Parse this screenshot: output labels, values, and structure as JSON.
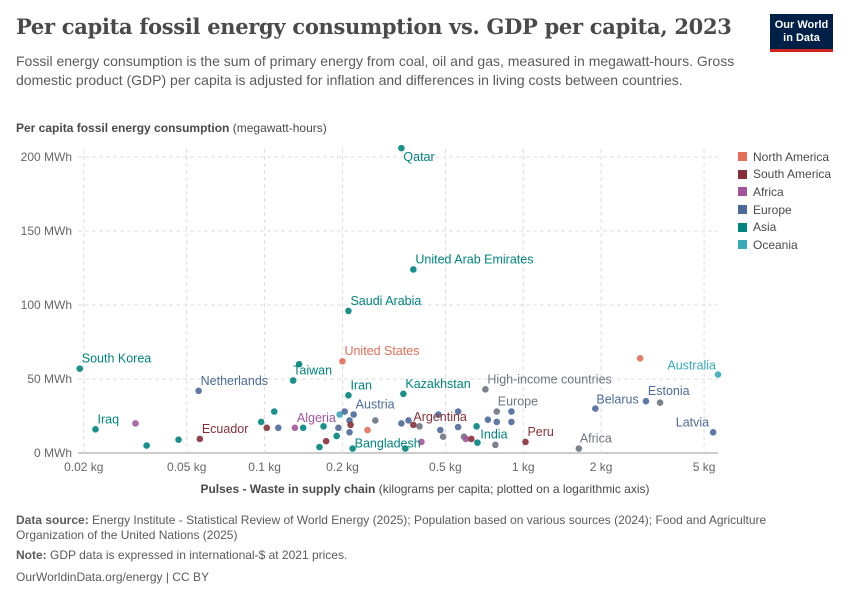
{
  "header": {
    "title": "Per capita fossil energy consumption vs. GDP per capita, 2023",
    "subtitle": "Fossil energy consumption is the sum of primary energy from coal, oil and gas, measured in megawatt-hours. Gross domestic product (GDP) per capita is adjusted for inflation and differences in living costs between countries.",
    "logo": "Our World in Data"
  },
  "chart_data": {
    "type": "scatter",
    "ylabel_bold": "Per capita fossil energy consumption",
    "ylabel_rest": "(megawatt-hours)",
    "xlabel_bold": "Pulses - Waste in supply chain",
    "xlabel_rest": "(kilograms per capita; plotted on a logarithmic axis)",
    "x_scale": "log",
    "xlim": [
      0.019,
      5.66
    ],
    "ylim": [
      0,
      210
    ],
    "grid": true,
    "legend_placement": "right",
    "x_ticks": [
      {
        "v": 0.02,
        "label": "0.02 kg"
      },
      {
        "v": 0.05,
        "label": "0.05 kg"
      },
      {
        "v": 0.1,
        "label": "0.1 kg"
      },
      {
        "v": 0.2,
        "label": "0.2 kg"
      },
      {
        "v": 0.5,
        "label": "0.5 kg"
      },
      {
        "v": 1,
        "label": "1 kg"
      },
      {
        "v": 2,
        "label": "2 kg"
      },
      {
        "v": 5,
        "label": "5 kg"
      }
    ],
    "y_ticks": [
      {
        "v": 0,
        "label": "0 MWh"
      },
      {
        "v": 50,
        "label": "50 MWh"
      },
      {
        "v": 100,
        "label": "100 MWh"
      },
      {
        "v": 150,
        "label": "150 MWh"
      },
      {
        "v": 200,
        "label": "200 MWh"
      }
    ],
    "legend": [
      {
        "name": "North America",
        "color": "#e56e5a"
      },
      {
        "name": "South America",
        "color": "#883039"
      },
      {
        "name": "Africa",
        "color": "#a2559c"
      },
      {
        "name": "Europe",
        "color": "#4c6a9c"
      },
      {
        "name": "Asia",
        "color": "#00847e"
      },
      {
        "name": "Oceania",
        "color": "#38aaba"
      }
    ],
    "aggregate_color": "#6e7581",
    "points": [
      {
        "label": "Qatar",
        "region": "Asia",
        "x": 0.338,
        "y": 206
      },
      {
        "label": "United Arab Emirates",
        "region": "Asia",
        "x": 0.376,
        "y": 124
      },
      {
        "label": "Saudi Arabia",
        "region": "Asia",
        "x": 0.211,
        "y": 96
      },
      {
        "label": "United States",
        "region": "North America",
        "x": 0.2,
        "y": 62
      },
      {
        "label": "South Korea",
        "region": "Asia",
        "x": 0.0193,
        "y": 57
      },
      {
        "label": "Taiwan",
        "region": "Asia",
        "x": 0.129,
        "y": 49
      },
      {
        "label": "Netherlands",
        "region": "Europe",
        "x": 0.0556,
        "y": 42
      },
      {
        "label": "Iran",
        "region": "Asia",
        "x": 0.211,
        "y": 39
      },
      {
        "label": "Kazakhstan",
        "region": "Asia",
        "x": 0.344,
        "y": 40
      },
      {
        "label": "High-income countries",
        "region": "aggregate",
        "x": 0.714,
        "y": 43
      },
      {
        "label": "Austria",
        "region": "Europe",
        "x": 0.221,
        "y": 26
      },
      {
        "label": "Europe",
        "region": "aggregate",
        "x": 0.79,
        "y": 28
      },
      {
        "label": "Belarus",
        "region": "Europe",
        "x": 1.9,
        "y": 30
      },
      {
        "label": "Estonia",
        "region": "Europe",
        "x": 2.98,
        "y": 35
      },
      {
        "label": "Australia",
        "region": "Oceania",
        "x": 5.66,
        "y": 53
      },
      {
        "label": "Latvia",
        "region": "Europe",
        "x": 5.42,
        "y": 14
      },
      {
        "label": "Iraq",
        "region": "Asia",
        "x": 0.0222,
        "y": 16
      },
      {
        "label": "Ecuador",
        "region": "South America",
        "x": 0.0562,
        "y": 9.5
      },
      {
        "label": "Algeria",
        "region": "Africa",
        "x": 0.131,
        "y": 17
      },
      {
        "label": "Argentina",
        "region": "South America",
        "x": 0.376,
        "y": 19
      },
      {
        "label": "Bangladesh",
        "region": "Asia",
        "x": 0.219,
        "y": 3
      },
      {
        "label": "India",
        "region": "Asia",
        "x": 0.665,
        "y": 7
      },
      {
        "label": "Peru",
        "region": "South America",
        "x": 1.02,
        "y": 7.5
      },
      {
        "label": "Africa",
        "region": "aggregate",
        "x": 1.64,
        "y": 3
      },
      {
        "region": "North America",
        "x": 2.83,
        "y": 64
      },
      {
        "region": "North America",
        "x": 0.25,
        "y": 15.5
      },
      {
        "region": "aggregate",
        "x": 3.38,
        "y": 34
      },
      {
        "region": "Asia",
        "x": 0.136,
        "y": 60
      },
      {
        "region": "Africa",
        "x": 0.0317,
        "y": 20
      },
      {
        "region": "Asia",
        "x": 0.035,
        "y": 5
      },
      {
        "region": "Asia",
        "x": 0.0465,
        "y": 9
      },
      {
        "region": "Asia",
        "x": 0.097,
        "y": 21
      },
      {
        "region": "Asia",
        "x": 0.109,
        "y": 28
      },
      {
        "region": "South America",
        "x": 0.102,
        "y": 17
      },
      {
        "region": "Europe",
        "x": 0.113,
        "y": 17
      },
      {
        "region": "Asia",
        "x": 0.141,
        "y": 17
      },
      {
        "region": "Asia",
        "x": 0.163,
        "y": 4
      },
      {
        "region": "South America",
        "x": 0.173,
        "y": 8
      },
      {
        "region": "Asia",
        "x": 0.19,
        "y": 11.5
      },
      {
        "region": "Asia",
        "x": 0.169,
        "y": 18
      },
      {
        "region": "Europe",
        "x": 0.193,
        "y": 17
      },
      {
        "region": "Oceania",
        "x": 0.195,
        "y": 26
      },
      {
        "region": "Europe",
        "x": 0.204,
        "y": 28
      },
      {
        "region": "Europe",
        "x": 0.213,
        "y": 22
      },
      {
        "region": "South America",
        "x": 0.215,
        "y": 19
      },
      {
        "region": "Europe",
        "x": 0.213,
        "y": 14
      },
      {
        "region": "aggregate",
        "x": 0.268,
        "y": 22
      },
      {
        "region": "Europe",
        "x": 0.338,
        "y": 20
      },
      {
        "region": "Europe",
        "x": 0.36,
        "y": 22
      },
      {
        "region": "aggregate",
        "x": 0.397,
        "y": 18
      },
      {
        "region": "Asia",
        "x": 0.35,
        "y": 3
      },
      {
        "region": "Africa",
        "x": 0.404,
        "y": 7.5
      },
      {
        "region": "Europe",
        "x": 0.47,
        "y": 26
      },
      {
        "region": "Europe",
        "x": 0.478,
        "y": 15.5
      },
      {
        "region": "aggregate",
        "x": 0.49,
        "y": 11
      },
      {
        "region": "Europe",
        "x": 0.56,
        "y": 28
      },
      {
        "region": "Europe",
        "x": 0.56,
        "y": 17.5
      },
      {
        "region": "aggregate",
        "x": 0.59,
        "y": 11
      },
      {
        "region": "Africa",
        "x": 0.6,
        "y": 9.5
      },
      {
        "region": "South America",
        "x": 0.63,
        "y": 9.5
      },
      {
        "region": "Asia",
        "x": 0.66,
        "y": 18
      },
      {
        "region": "Europe",
        "x": 0.73,
        "y": 22.5
      },
      {
        "region": "Europe",
        "x": 0.79,
        "y": 21
      },
      {
        "region": "Europe",
        "x": 0.9,
        "y": 28
      },
      {
        "region": "Europe",
        "x": 0.9,
        "y": 21
      },
      {
        "region": "aggregate",
        "x": 0.78,
        "y": 5.5
      }
    ]
  },
  "footer": {
    "source_label": "Data source:",
    "source_text": "Energy Institute - Statistical Review of World Energy (2025); Population based on various sources (2024); Food and Agriculture Organization of the United Nations (2025)",
    "note_label": "Note:",
    "note_text": "GDP data is expressed in international-$ at 2021 prices.",
    "credit": "OurWorldinData.org/energy | CC BY"
  }
}
